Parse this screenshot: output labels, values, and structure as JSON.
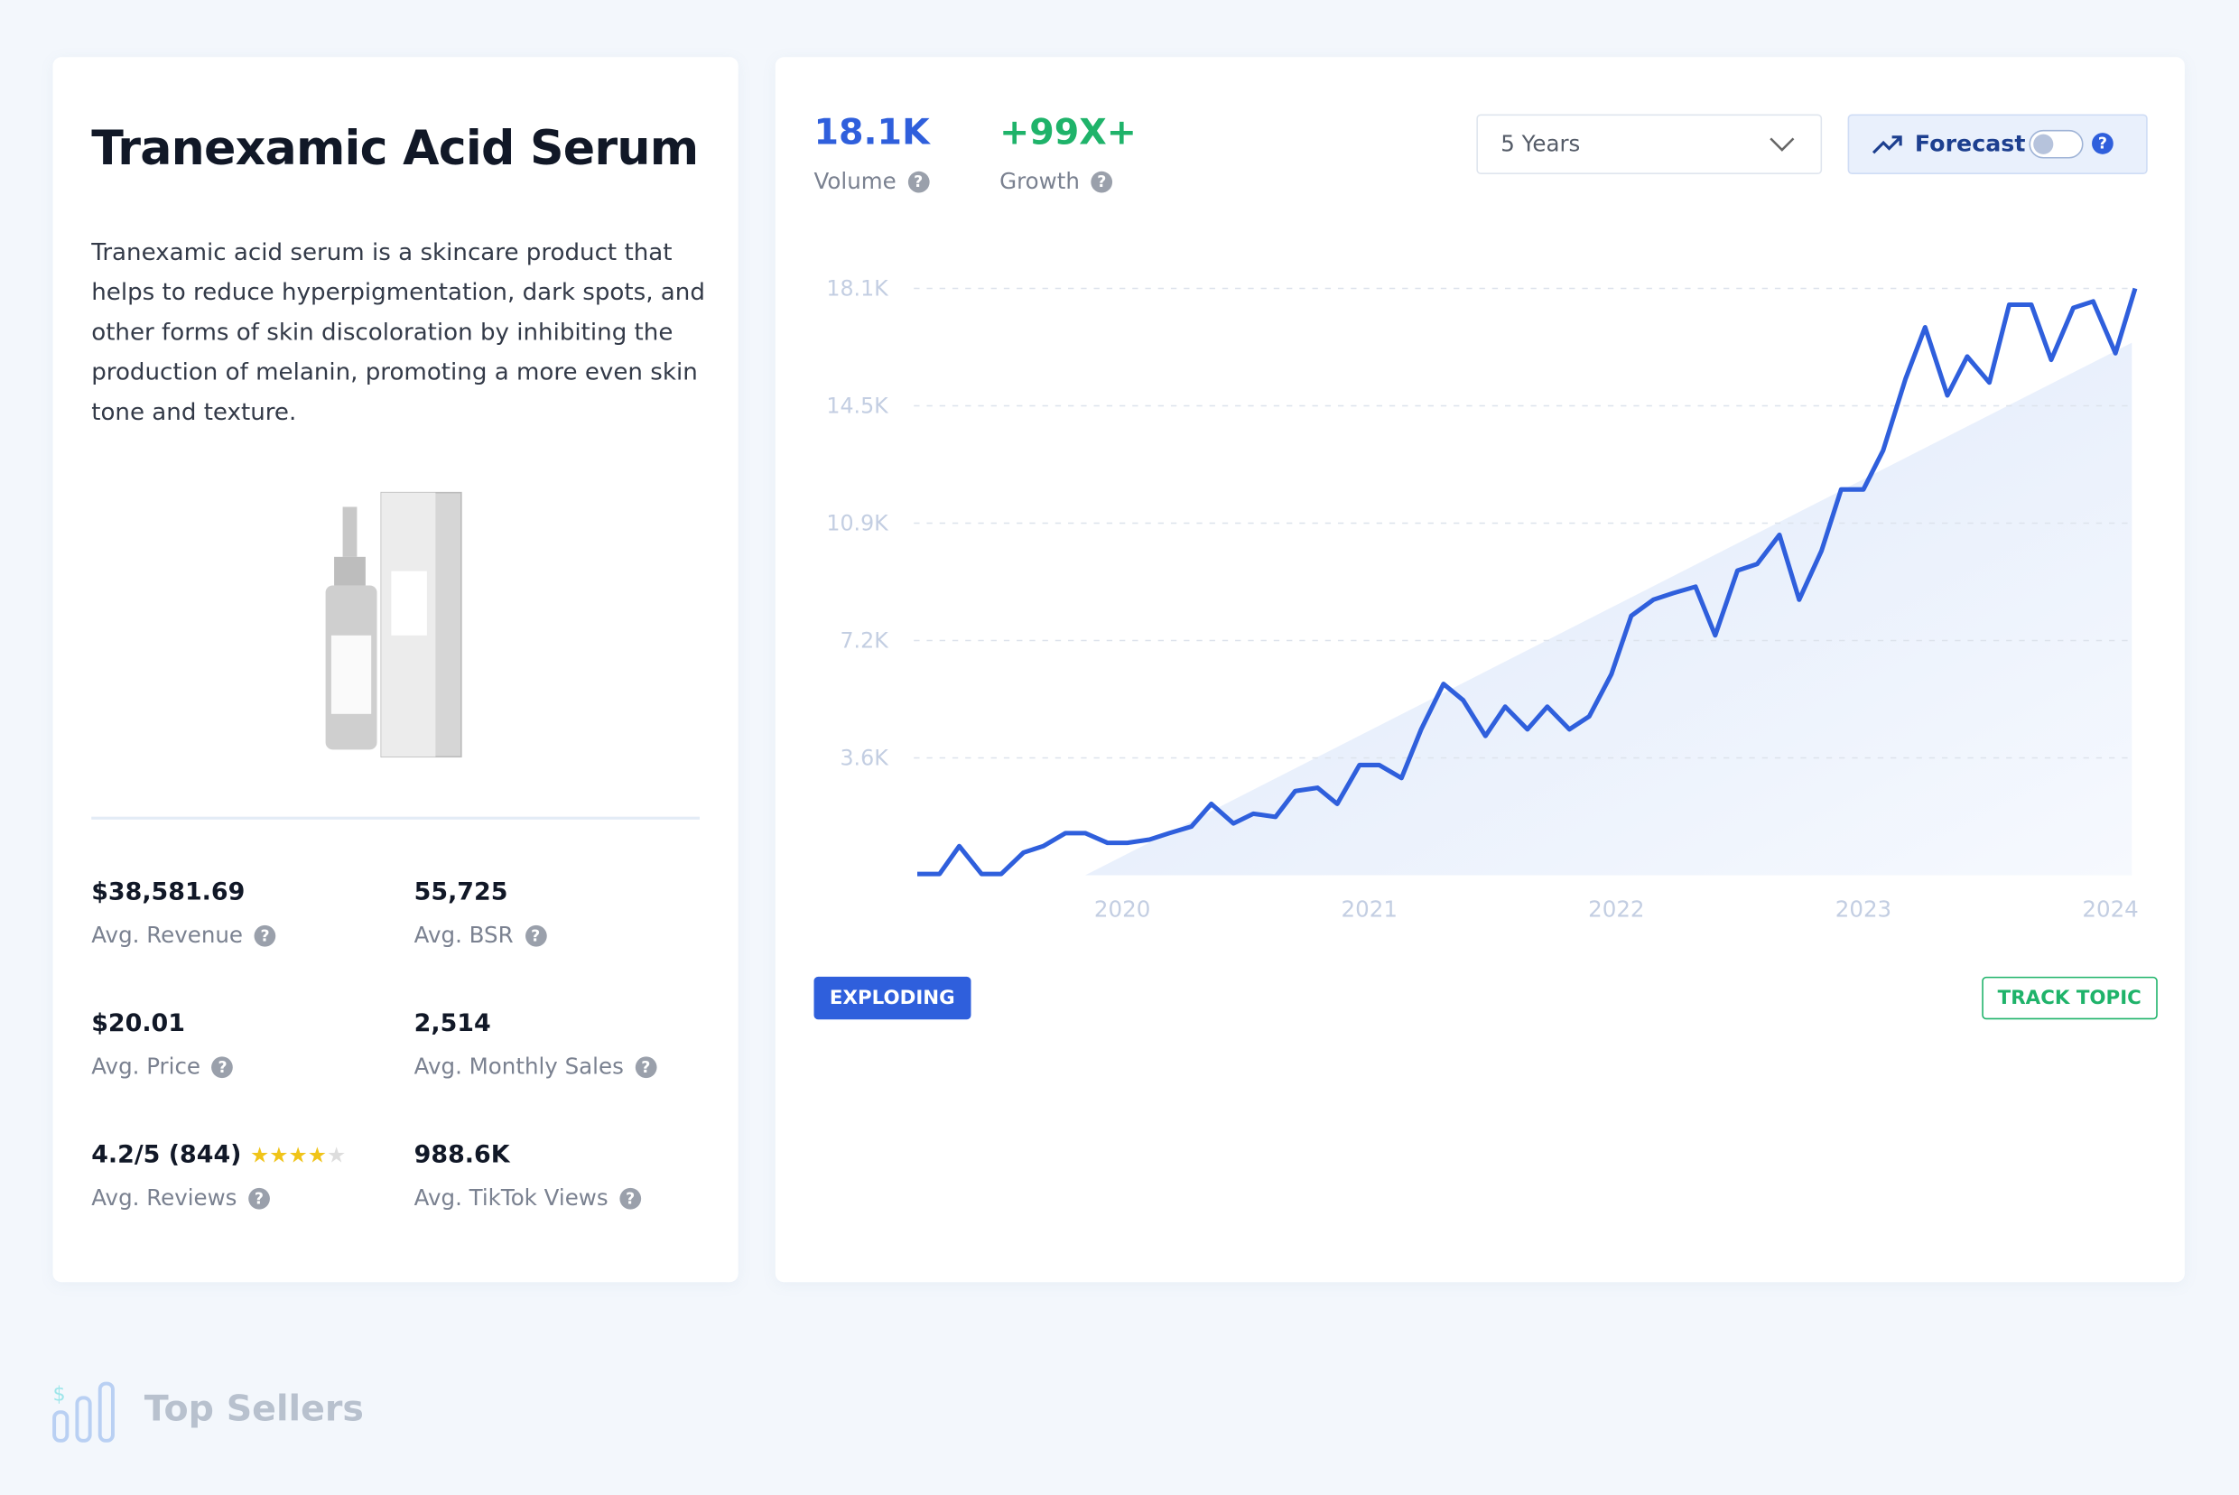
{
  "product": {
    "title": "Tranexamic Acid Serum",
    "description": "Tranexamic acid serum is a skincare product that helps to reduce hyperpigmentation, dark spots, and other forms of skin discoloration by inhibiting the production of melanin, promoting a more even skin tone and texture.",
    "stats": [
      {
        "value": "$38,581.69",
        "label": "Avg. Revenue"
      },
      {
        "value": "55,725",
        "label": "Avg. BSR"
      },
      {
        "value": "$20.01",
        "label": "Avg. Price"
      },
      {
        "value": "2,514",
        "label": "Avg. Monthly Sales"
      },
      {
        "value": "4.2/5 (844)",
        "label": "Avg. Reviews"
      },
      {
        "value": "988.6K",
        "label": "Avg. TikTok Views"
      }
    ]
  },
  "metrics": {
    "volume": "18.1K",
    "volume_label": "Volume",
    "growth": "+99X+",
    "growth_label": "Growth"
  },
  "controls": {
    "range": "5 Years",
    "forecast": "Forecast",
    "badge": "EXPLODING",
    "track": "TRACK TOPIC"
  },
  "footer": {
    "section": "Top Sellers"
  },
  "chart_data": {
    "type": "line",
    "color": "#2f5fdc",
    "grid": true,
    "x": [
      2019.17,
      2019.26,
      2019.34,
      2019.43,
      2019.51,
      2019.6,
      2019.68,
      2019.77,
      2019.85,
      2019.94,
      2020.02,
      2020.11,
      2020.19,
      2020.28,
      2020.36,
      2020.45,
      2020.53,
      2020.62,
      2020.7,
      2020.79,
      2020.87,
      2020.96,
      2021.04,
      2021.13,
      2021.21,
      2021.3,
      2021.38,
      2021.47,
      2021.55,
      2021.64,
      2021.72,
      2021.81,
      2021.89,
      2021.98,
      2022.06,
      2022.15,
      2022.23,
      2022.32,
      2022.4,
      2022.49,
      2022.57,
      2022.66,
      2022.74,
      2022.83,
      2022.91,
      2023.0,
      2023.08,
      2023.17,
      2023.25,
      2023.34,
      2023.42,
      2023.51,
      2023.59,
      2023.68,
      2023.76,
      2023.85,
      2023.93,
      2024.02,
      2024.1
    ],
    "values": [
      40,
      40,
      900,
      40,
      40,
      700,
      900,
      1300,
      1300,
      1000,
      1000,
      1100,
      1300,
      1500,
      2200,
      1600,
      1900,
      1800,
      2600,
      2700,
      2200,
      3400,
      3400,
      3000,
      4500,
      5900,
      5400,
      4300,
      5200,
      4500,
      5200,
      4500,
      4900,
      6200,
      8000,
      8500,
      8700,
      8900,
      7400,
      9400,
      9600,
      10500,
      8500,
      10000,
      11900,
      11900,
      13100,
      15300,
      16900,
      14800,
      16000,
      15200,
      17600,
      17600,
      15900,
      17500,
      17700,
      16100,
      18100
    ],
    "xlim": [
      2019.17,
      2024.1
    ],
    "xticks": [
      2020,
      2021,
      2022,
      2023,
      2024
    ],
    "ylim": [
      0,
      18100
    ],
    "yticks": [
      {
        "value": 3620,
        "label": "3.6K"
      },
      {
        "value": 7240,
        "label": "7.2K"
      },
      {
        "value": 10860,
        "label": "10.9K"
      },
      {
        "value": 14480,
        "label": "14.5K"
      },
      {
        "value": 18100,
        "label": "18.1K"
      }
    ]
  }
}
